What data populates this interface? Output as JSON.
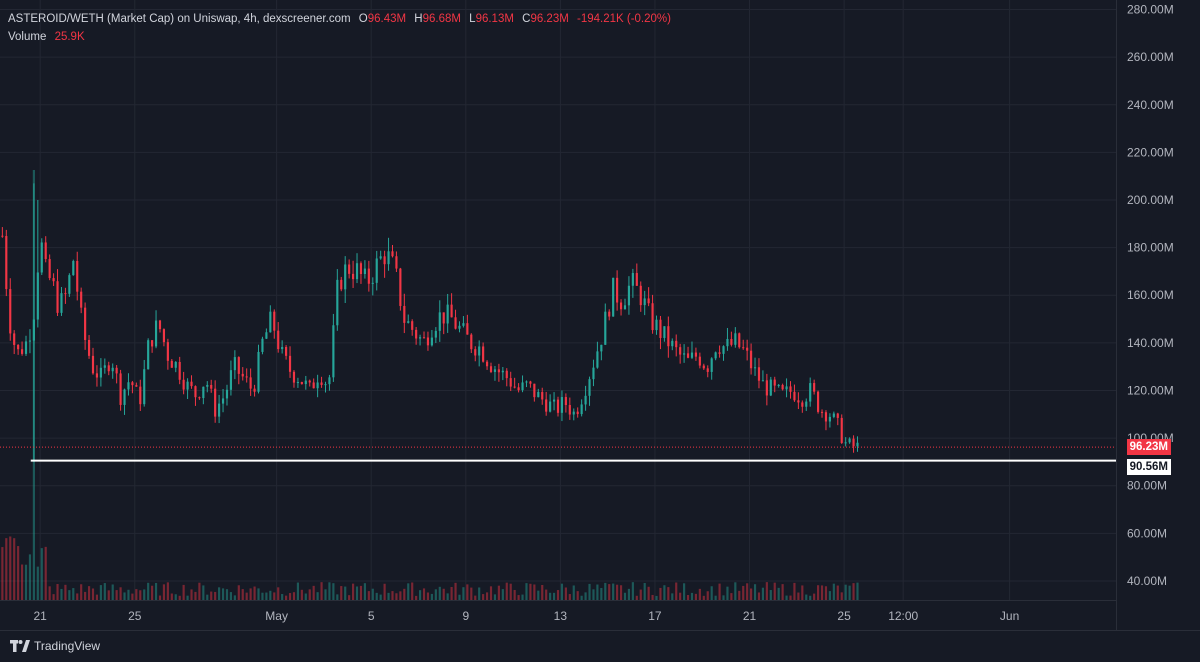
{
  "legend": {
    "title": "ASTEROID/WETH (Market Cap) on Uniswap, 4h, dexscreener.com",
    "o_label": "O",
    "o_value": "96.43M",
    "h_label": "H",
    "h_value": "96.68M",
    "l_label": "L",
    "l_value": "96.13M",
    "c_label": "C",
    "c_value": "96.23M",
    "change": "-194.21K (-0.20%)",
    "volume_label": "Volume",
    "volume_value": "25.9K"
  },
  "footer": {
    "brand": "TradingView"
  },
  "colors": {
    "up": "#26a69a",
    "down": "#f23645",
    "bg": "#161a25",
    "grid": "#232733",
    "axis_text": "#b2b5be"
  },
  "chart_data": {
    "type": "candlestick",
    "timeframe": "4h",
    "y_axis": {
      "ticks": [
        "280.00M",
        "260.00M",
        "240.00M",
        "220.00M",
        "200.00M",
        "180.00M",
        "160.00M",
        "140.00M",
        "120.00M",
        "100.00M",
        "80.00M",
        "60.00M",
        "40.00M"
      ],
      "tick_values": [
        280,
        260,
        240,
        220,
        200,
        180,
        160,
        140,
        120,
        100,
        80,
        60,
        40
      ],
      "unit": "M",
      "range": [
        32,
        284
      ]
    },
    "x_axis": {
      "ticks": [
        {
          "label": "21",
          "day": 21
        },
        {
          "label": "25",
          "day": 25
        },
        {
          "label": "May",
          "day": 31
        },
        {
          "label": "5",
          "day": 35
        },
        {
          "label": "9",
          "day": 39
        },
        {
          "label": "13",
          "day": 43
        },
        {
          "label": "17",
          "day": 47
        },
        {
          "label": "21",
          "day": 51
        },
        {
          "label": "25",
          "day": 55
        },
        {
          "label": "12:00",
          "day": 57.5
        },
        {
          "label": "Jun",
          "day": 62
        }
      ],
      "range": [
        19.3,
        66.5
      ]
    },
    "last_price": {
      "label": "96.23M",
      "value": 96.23
    },
    "support_line": {
      "label": "90.56M",
      "value": 90.56
    },
    "path_days": [
      19.4,
      19.7,
      20.0,
      20.4,
      20.7,
      21.0,
      21.2,
      21.5,
      21.8,
      22.1,
      22.4,
      22.8,
      23.2,
      23.6,
      24.0,
      24.4,
      24.8,
      25.2,
      25.6,
      26.0,
      26.4,
      26.8,
      27.2,
      27.6,
      28.0,
      28.4,
      28.8,
      29.2,
      29.6,
      30.0,
      30.4,
      30.8,
      31.2,
      31.6,
      32.0,
      32.4,
      32.8,
      33.2,
      33.6,
      34.0,
      34.4,
      34.8,
      35.2,
      35.6,
      36.0,
      36.4,
      36.8,
      37.2,
      37.6,
      38.0,
      38.4,
      38.8,
      39.2,
      39.6,
      40.0,
      40.4,
      40.8,
      41.2,
      41.6,
      42.0,
      42.4,
      42.8,
      43.2,
      43.6,
      44.0,
      44.4,
      44.8,
      45.2,
      45.6,
      46.0,
      46.4,
      46.8,
      47.2,
      47.6,
      48.0,
      48.4,
      48.8,
      49.2,
      49.6,
      50.0,
      50.4,
      50.8,
      51.2,
      51.6,
      52.0,
      52.4,
      52.8,
      53.2,
      53.6,
      54.0,
      54.4,
      54.8,
      55.0,
      55.2,
      55.4,
      55.6
    ],
    "path_close": [
      185,
      150,
      135,
      140,
      150,
      185,
      170,
      165,
      155,
      160,
      175,
      145,
      130,
      125,
      135,
      118,
      125,
      115,
      140,
      148,
      135,
      130,
      122,
      118,
      125,
      112,
      118,
      130,
      125,
      120,
      140,
      150,
      135,
      128,
      125,
      120,
      128,
      122,
      165,
      172,
      170,
      165,
      172,
      178,
      170,
      150,
      145,
      140,
      148,
      152,
      150,
      145,
      140,
      138,
      132,
      128,
      125,
      120,
      122,
      118,
      115,
      112,
      115,
      110,
      120,
      132,
      145,
      162,
      158,
      165,
      160,
      150,
      145,
      140,
      135,
      132,
      135,
      130,
      140,
      138,
      140,
      136,
      128,
      122,
      120,
      118,
      120,
      117,
      120,
      112,
      110,
      104,
      98,
      97,
      96.5,
      96.23
    ],
    "volume_note": "per-candle volume bars at bottom"
  }
}
